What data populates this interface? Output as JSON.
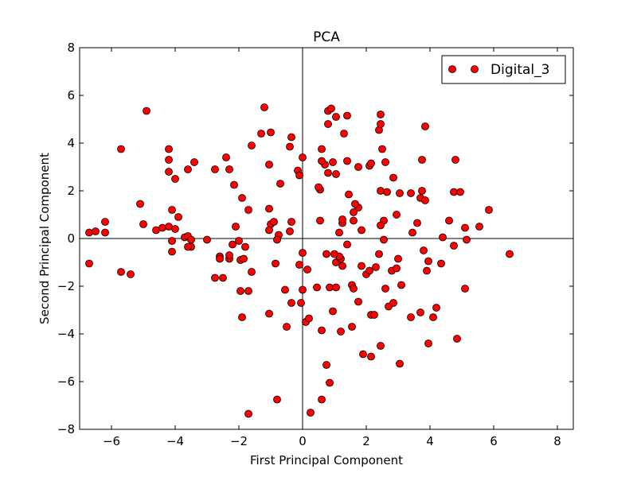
{
  "chart_data": {
    "type": "scatter",
    "title": "PCA",
    "xlabel": "First Principal Component",
    "ylabel": "Second Principal Component",
    "xlim": [
      -7,
      8.5
    ],
    "ylim": [
      -8,
      8
    ],
    "x_ticks": [
      -6,
      -4,
      -2,
      0,
      2,
      4,
      6,
      8
    ],
    "y_ticks": [
      -8,
      -6,
      -4,
      -2,
      0,
      2,
      4,
      6,
      8
    ],
    "x_tick_labels": [
      "−6",
      "−4",
      "−2",
      "0",
      "2",
      "4",
      "6",
      "8"
    ],
    "y_tick_labels": [
      "−8",
      "−6",
      "−4",
      "−2",
      "0",
      "2",
      "4",
      "6",
      "8"
    ],
    "grid": false,
    "zero_lines": true,
    "legend_position": "top-right",
    "series": [
      {
        "name": "Digital_3",
        "color": "#ff0000",
        "edge_color": "#000000",
        "marker": "circle",
        "points": [
          [
            -6.7,
            0.25
          ],
          [
            -6.5,
            0.3
          ],
          [
            -6.2,
            0.7
          ],
          [
            -6.2,
            0.25
          ],
          [
            -6.7,
            -1.05
          ],
          [
            -5.7,
            -1.4
          ],
          [
            -5.4,
            -1.5
          ],
          [
            -5.7,
            3.75
          ],
          [
            -4.9,
            5.35
          ],
          [
            -5.1,
            1.45
          ],
          [
            -5.0,
            0.6
          ],
          [
            -4.6,
            0.35
          ],
          [
            -4.4,
            0.45
          ],
          [
            -4.2,
            0.5
          ],
          [
            -4.0,
            0.4
          ],
          [
            -4.1,
            -0.1
          ],
          [
            -4.1,
            -0.55
          ],
          [
            -4.2,
            3.75
          ],
          [
            -4.2,
            3.3
          ],
          [
            -4.2,
            2.8
          ],
          [
            -4.0,
            2.5
          ],
          [
            -3.6,
            2.9
          ],
          [
            -3.4,
            3.2
          ],
          [
            -4.1,
            1.2
          ],
          [
            -3.9,
            0.9
          ],
          [
            -3.7,
            0.05
          ],
          [
            -3.6,
            0.1
          ],
          [
            -3.5,
            -0.05
          ],
          [
            -3.5,
            -0.35
          ],
          [
            -3.6,
            -0.35
          ],
          [
            -3.0,
            -0.05
          ],
          [
            -2.75,
            2.9
          ],
          [
            -2.4,
            3.4
          ],
          [
            -2.3,
            2.9
          ],
          [
            -2.15,
            2.25
          ],
          [
            -1.9,
            1.7
          ],
          [
            -1.7,
            1.2
          ],
          [
            -2.1,
            0.5
          ],
          [
            -2.0,
            -0.1
          ],
          [
            -2.2,
            -0.25
          ],
          [
            -2.6,
            -0.75
          ],
          [
            -2.6,
            -0.85
          ],
          [
            -2.3,
            -0.85
          ],
          [
            -2.3,
            -0.7
          ],
          [
            -1.95,
            -0.9
          ],
          [
            -1.85,
            -0.85
          ],
          [
            -1.8,
            -0.35
          ],
          [
            -1.6,
            -1.4
          ],
          [
            -2.75,
            -1.65
          ],
          [
            -2.5,
            -1.65
          ],
          [
            -1.95,
            -2.2
          ],
          [
            -1.7,
            -2.2
          ],
          [
            -1.9,
            -3.3
          ],
          [
            -1.6,
            3.9
          ],
          [
            -1.3,
            4.4
          ],
          [
            -1.2,
            5.5
          ],
          [
            -1.0,
            4.45
          ],
          [
            -1.05,
            3.1
          ],
          [
            -1.05,
            1.25
          ],
          [
            -1.0,
            0.6
          ],
          [
            -0.9,
            0.7
          ],
          [
            -1.05,
            0.35
          ],
          [
            -0.75,
            0.15
          ],
          [
            -0.8,
            -0.05
          ],
          [
            -0.85,
            -1.05
          ],
          [
            -0.55,
            -2.15
          ],
          [
            -0.35,
            -2.7
          ],
          [
            -1.05,
            -3.15
          ],
          [
            -0.5,
            -3.7
          ],
          [
            -0.8,
            -6.75
          ],
          [
            -1.7,
            -7.35
          ],
          [
            -0.7,
            2.3
          ],
          [
            -0.35,
            4.25
          ],
          [
            -0.4,
            3.85
          ],
          [
            -0.15,
            2.85
          ],
          [
            -0.1,
            2.65
          ],
          [
            0.0,
            3.4
          ],
          [
            -0.35,
            0.7
          ],
          [
            -0.4,
            0.3
          ],
          [
            0.0,
            -0.6
          ],
          [
            -0.1,
            -1.1
          ],
          [
            0.15,
            -1.3
          ],
          [
            0.0,
            -2.15
          ],
          [
            -0.05,
            -2.7
          ],
          [
            0.1,
            -3.5
          ],
          [
            0.2,
            -3.35
          ],
          [
            0.25,
            -7.3
          ],
          [
            0.45,
            -2.05
          ],
          [
            0.6,
            -3.85
          ],
          [
            0.6,
            -6.75
          ],
          [
            0.85,
            -6.05
          ],
          [
            0.75,
            -5.3
          ],
          [
            0.85,
            -2.05
          ],
          [
            1.05,
            -2.05
          ],
          [
            0.95,
            -3.05
          ],
          [
            1.2,
            -3.9
          ],
          [
            1.05,
            -1.0
          ],
          [
            1.2,
            -0.85
          ],
          [
            1.25,
            -1.15
          ],
          [
            1.15,
            -0.75
          ],
          [
            0.75,
            -0.65
          ],
          [
            1.0,
            -0.65
          ],
          [
            1.4,
            -0.25
          ],
          [
            1.55,
            -1.95
          ],
          [
            1.6,
            -2.1
          ],
          [
            1.75,
            -2.65
          ],
          [
            1.55,
            -3.7
          ],
          [
            1.9,
            -4.85
          ],
          [
            2.15,
            -4.95
          ],
          [
            2.15,
            -3.2
          ],
          [
            2.25,
            -3.2
          ],
          [
            2.45,
            -4.5
          ],
          [
            1.85,
            -1.15
          ],
          [
            2.0,
            -1.5
          ],
          [
            2.1,
            -1.35
          ],
          [
            2.3,
            -1.2
          ],
          [
            2.4,
            -0.65
          ],
          [
            2.6,
            -2.1
          ],
          [
            2.7,
            -2.85
          ],
          [
            2.85,
            -2.7
          ],
          [
            3.05,
            -5.25
          ],
          [
            3.1,
            -1.95
          ],
          [
            2.8,
            -1.35
          ],
          [
            2.95,
            -1.25
          ],
          [
            3.0,
            -0.85
          ],
          [
            3.4,
            -3.3
          ],
          [
            3.7,
            -3.1
          ],
          [
            3.95,
            -4.4
          ],
          [
            4.1,
            -3.3
          ],
          [
            4.2,
            -2.9
          ],
          [
            3.9,
            -1.35
          ],
          [
            3.95,
            -0.95
          ],
          [
            4.35,
            -1.05
          ],
          [
            4.85,
            -4.2
          ],
          [
            5.1,
            -2.1
          ],
          [
            4.75,
            -0.3
          ],
          [
            5.15,
            -0.05
          ],
          [
            4.4,
            0.05
          ],
          [
            3.8,
            -0.5
          ],
          [
            3.45,
            0.25
          ],
          [
            3.6,
            0.65
          ],
          [
            3.7,
            1.7
          ],
          [
            3.75,
            2.0
          ],
          [
            3.85,
            1.6
          ],
          [
            3.4,
            1.9
          ],
          [
            3.75,
            3.3
          ],
          [
            3.85,
            4.7
          ],
          [
            4.8,
            3.3
          ],
          [
            4.75,
            1.95
          ],
          [
            4.95,
            1.95
          ],
          [
            4.6,
            0.75
          ],
          [
            5.1,
            0.45
          ],
          [
            5.55,
            0.5
          ],
          [
            5.85,
            1.2
          ],
          [
            6.5,
            -0.65
          ],
          [
            3.05,
            1.9
          ],
          [
            2.85,
            2.55
          ],
          [
            2.95,
            1.0
          ],
          [
            2.6,
            3.2
          ],
          [
            2.65,
            1.95
          ],
          [
            2.45,
            2.0
          ],
          [
            2.55,
            0.75
          ],
          [
            2.45,
            0.55
          ],
          [
            2.55,
            -0.05
          ],
          [
            2.5,
            3.75
          ],
          [
            2.4,
            4.55
          ],
          [
            2.45,
            4.8
          ],
          [
            2.45,
            5.2
          ],
          [
            2.1,
            3.05
          ],
          [
            2.15,
            3.15
          ],
          [
            1.75,
            3.0
          ],
          [
            1.75,
            1.3
          ],
          [
            1.65,
            1.45
          ],
          [
            1.45,
            1.85
          ],
          [
            1.6,
            1.1
          ],
          [
            1.6,
            0.75
          ],
          [
            1.85,
            0.35
          ],
          [
            1.25,
            0.65
          ],
          [
            1.25,
            0.8
          ],
          [
            1.15,
            0.25
          ],
          [
            1.05,
            2.7
          ],
          [
            0.95,
            3.2
          ],
          [
            0.7,
            3.1
          ],
          [
            0.6,
            3.25
          ],
          [
            0.55,
            2.05
          ],
          [
            0.5,
            2.15
          ],
          [
            0.55,
            0.75
          ],
          [
            0.8,
            2.75
          ],
          [
            0.6,
            3.75
          ],
          [
            0.8,
            4.8
          ],
          [
            0.8,
            5.35
          ],
          [
            0.9,
            5.45
          ],
          [
            1.05,
            5.1
          ],
          [
            1.4,
            5.15
          ],
          [
            1.3,
            4.4
          ],
          [
            1.4,
            3.25
          ]
        ]
      }
    ]
  }
}
